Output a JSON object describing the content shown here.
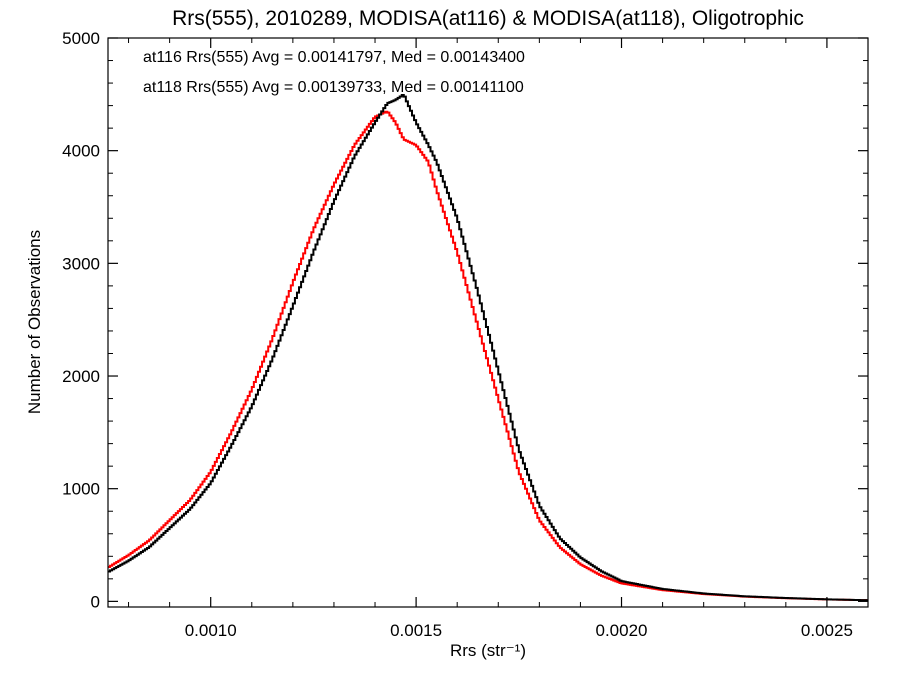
{
  "chart_data": {
    "type": "line",
    "title": "Rrs(555), 2010289, MODISA(at116) & MODISA(at118), Oligotrophic",
    "xlabel": "Rrs (str⁻¹)",
    "ylabel": "Number of Observations",
    "xlim": [
      0.00075,
      0.0026
    ],
    "ylim": [
      -50,
      5000
    ],
    "xticks": [
      0.001,
      0.0015,
      0.002,
      0.0025
    ],
    "xtick_labels": [
      "0.0010",
      "0.0015",
      "0.0020",
      "0.0025"
    ],
    "yticks": [
      0,
      1000,
      2000,
      3000,
      4000,
      5000
    ],
    "ytick_labels": [
      "0",
      "1000",
      "2000",
      "3000",
      "4000",
      "5000"
    ],
    "grid": false,
    "legend_position": "top-left",
    "series": [
      {
        "name": "at116",
        "color": "#000000",
        "label": "at116 Rrs(555) Avg = 0.00141797, Med = 0.00143400",
        "x": [
          0.00075,
          0.0008,
          0.00085,
          0.0009,
          0.00095,
          0.001,
          0.00105,
          0.0011,
          0.00115,
          0.0012,
          0.00125,
          0.0013,
          0.00135,
          0.0014,
          0.00143,
          0.00145,
          0.00147,
          0.0015,
          0.00153,
          0.00155,
          0.0016,
          0.00165,
          0.0017,
          0.00175,
          0.0018,
          0.00185,
          0.0019,
          0.00195,
          0.002,
          0.0021,
          0.0022,
          0.0023,
          0.0024,
          0.0025,
          0.0026
        ],
        "y": [
          260,
          360,
          480,
          650,
          820,
          1050,
          1380,
          1730,
          2150,
          2620,
          3100,
          3550,
          3950,
          4250,
          4420,
          4450,
          4500,
          4250,
          4050,
          3900,
          3400,
          2750,
          2050,
          1350,
          850,
          560,
          390,
          270,
          180,
          110,
          70,
          45,
          30,
          18,
          10
        ]
      },
      {
        "name": "at118",
        "color": "#ff0000",
        "label": "at118 Rrs(555) Avg = 0.00139733, Med = 0.00141100",
        "x": [
          0.00075,
          0.0008,
          0.00085,
          0.0009,
          0.00095,
          0.001,
          0.00105,
          0.0011,
          0.00115,
          0.0012,
          0.00125,
          0.0013,
          0.00135,
          0.0014,
          0.00143,
          0.00145,
          0.00147,
          0.0015,
          0.00153,
          0.00155,
          0.0016,
          0.00165,
          0.0017,
          0.00175,
          0.0018,
          0.00185,
          0.0019,
          0.00195,
          0.002,
          0.0021,
          0.0022,
          0.0023,
          0.0024,
          0.0025,
          0.0026
        ],
        "y": [
          300,
          410,
          540,
          720,
          900,
          1150,
          1500,
          1880,
          2330,
          2830,
          3300,
          3700,
          4050,
          4300,
          4350,
          4250,
          4100,
          4050,
          3900,
          3650,
          3100,
          2450,
          1800,
          1150,
          720,
          480,
          330,
          230,
          160,
          100,
          65,
          42,
          28,
          17,
          10
        ]
      }
    ]
  }
}
